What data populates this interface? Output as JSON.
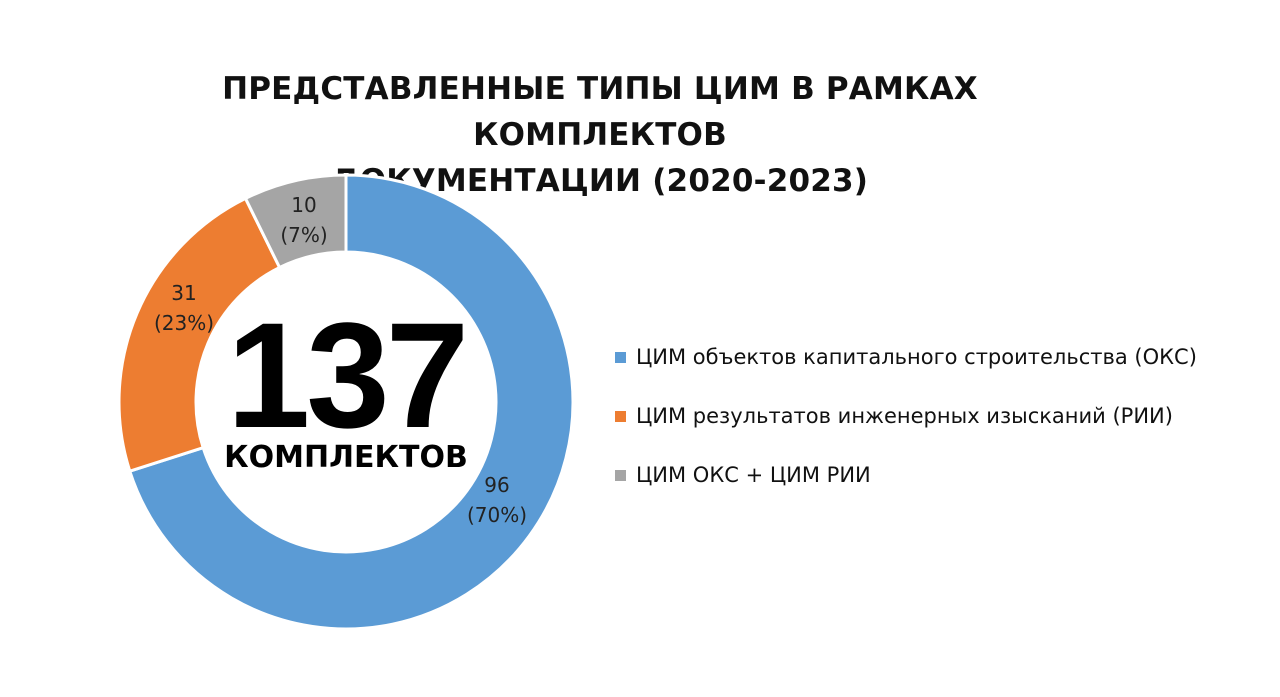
{
  "chart_data": {
    "type": "pie",
    "variant": "donut",
    "title_lines": [
      "ПРЕДСТАВЛЕННЫЕ ТИПЫ ЦИМ В РАМКАХ КОМПЛЕКТОВ",
      "ДОКУМЕНТАЦИИ (2020-2023)"
    ],
    "center": {
      "number": "137",
      "label": "КОМПЛЕКТОВ"
    },
    "slices": [
      {
        "name": "ЦИМ объектов капитального строительства (ОКС)",
        "value": 96,
        "value_label": "96",
        "percent_label": "(70%)",
        "color": "#5b9bd5"
      },
      {
        "name": "ЦИМ результатов инженерных изысканий (РИИ)",
        "value": 31,
        "value_label": "31",
        "percent_label": "(23%)",
        "color": "#ed7d31"
      },
      {
        "name": "ЦИМ ОКС + ЦИМ РИИ",
        "value": 10,
        "value_label": "10",
        "percent_label": "(7%)",
        "color": "#a5a5a5"
      }
    ],
    "legend_position": "right"
  }
}
